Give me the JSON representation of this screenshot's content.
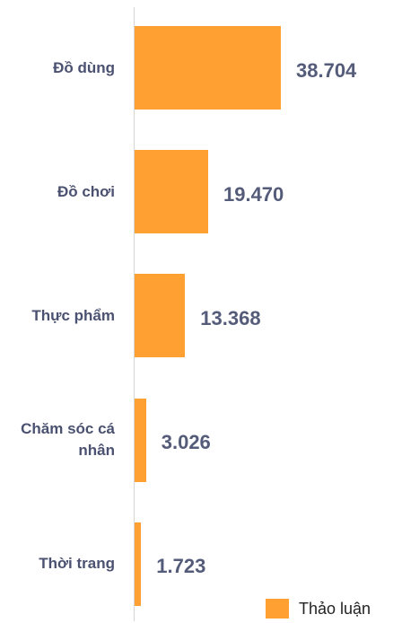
{
  "chart_data": {
    "type": "bar",
    "orientation": "horizontal",
    "categories": [
      "Đồ dùng",
      "Đồ chơi",
      "Thực phẩm",
      "Chăm sóc cá nhân",
      "Thời trang"
    ],
    "series": [
      {
        "name": "Thảo luận",
        "color": "#ffa033",
        "values": [
          38704,
          19470,
          13368,
          3026,
          1723
        ],
        "value_labels": [
          "38.704",
          "19.470",
          "13.368",
          "3.026",
          "1.723"
        ]
      }
    ],
    "legend": "bottom-right"
  }
}
